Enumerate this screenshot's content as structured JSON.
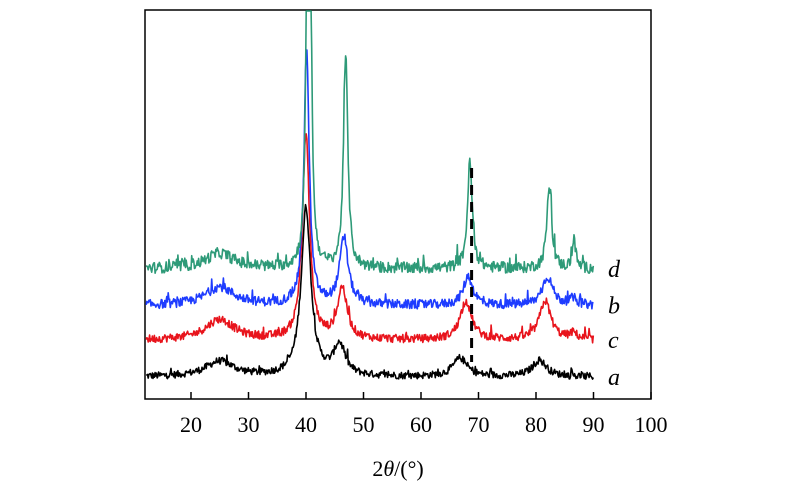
{
  "chart_data": {
    "type": "line",
    "title": "",
    "xlabel": {
      "prefix": "2",
      "var": "θ",
      "suffix": "/(°)"
    },
    "ylabel": "",
    "xlim": [
      12,
      100
    ],
    "x_ticks": [
      20,
      30,
      40,
      50,
      60,
      70,
      80,
      90,
      100
    ],
    "grid": false,
    "legend": "inline labels at right end of each curve",
    "reference_line": {
      "x": 68.8,
      "style": "dashed",
      "color": "#000000"
    },
    "series": [
      {
        "name": "a",
        "color": "#000000",
        "offset": 0,
        "baseline": 0.5,
        "noise": 0.35,
        "peaks": [
          [
            25,
            1.5,
            3.0
          ],
          [
            40.0,
            16.5,
            1.0
          ],
          [
            45.8,
            3.0,
            1.2
          ],
          [
            66.8,
            1.8,
            1.5
          ],
          [
            80.6,
            1.6,
            1.5
          ]
        ]
      },
      {
        "name": "c",
        "color": "#e8141c",
        "offset": 3.6,
        "baseline": 0.5,
        "noise": 0.4,
        "peaks": [
          [
            25,
            2.0,
            3.0
          ],
          [
            40.0,
            20.0,
            0.75
          ],
          [
            46.3,
            5.0,
            1.0
          ],
          [
            67.8,
            3.8,
            1.2
          ],
          [
            81.6,
            3.8,
            1.2
          ],
          [
            86.5,
            0.6,
            0.8
          ]
        ]
      },
      {
        "name": "b",
        "color": "#1e3cff",
        "offset": 7.0,
        "baseline": 0.5,
        "noise": 0.45,
        "peaks": [
          [
            25,
            1.8,
            3.0
          ],
          [
            40.1,
            25.0,
            0.55
          ],
          [
            46.6,
            6.5,
            0.9
          ],
          [
            68.2,
            2.8,
            1.0
          ],
          [
            82.0,
            2.8,
            1.1
          ],
          [
            86.5,
            0.6,
            0.8
          ]
        ]
      },
      {
        "name": "d",
        "color": "#2e9a78",
        "offset": 10.6,
        "baseline": 0.5,
        "noise": 0.55,
        "peaks": [
          [
            25,
            1.5,
            3.0
          ],
          [
            40.3,
            36.0,
            0.35
          ],
          [
            40.8,
            20.0,
            0.3
          ],
          [
            46.9,
            21.0,
            0.45
          ],
          [
            68.5,
            10.5,
            0.5
          ],
          [
            82.3,
            8.0,
            0.5
          ],
          [
            86.6,
            3.0,
            0.35
          ]
        ]
      }
    ]
  }
}
